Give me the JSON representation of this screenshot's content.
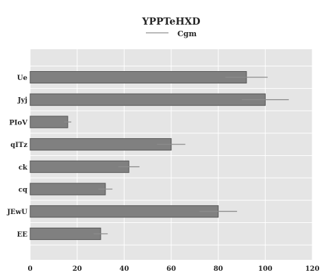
{
  "chart_data": {
    "type": "bar",
    "orientation": "horizontal",
    "title": "YPPTeHXD",
    "legend": {
      "entries": [
        "Cgm"
      ],
      "placement": "top-center"
    },
    "categories": [
      "Ue",
      "Jyj",
      "PIoV",
      "qITz",
      "ck",
      "cq",
      "JEwU",
      "EE"
    ],
    "series": [
      {
        "name": "Cgm",
        "values": [
          92,
          100,
          16,
          60,
          42,
          32,
          80,
          30
        ],
        "errors": [
          9,
          10,
          1.5,
          6,
          4.5,
          3,
          8,
          3
        ],
        "color": "#808080"
      }
    ],
    "xlim": [
      0,
      120
    ],
    "xticks": [
      0,
      20,
      40,
      60,
      80,
      100,
      120
    ],
    "xlabel": "",
    "ylabel": "",
    "grid": true,
    "background": "#e5e5e5"
  }
}
